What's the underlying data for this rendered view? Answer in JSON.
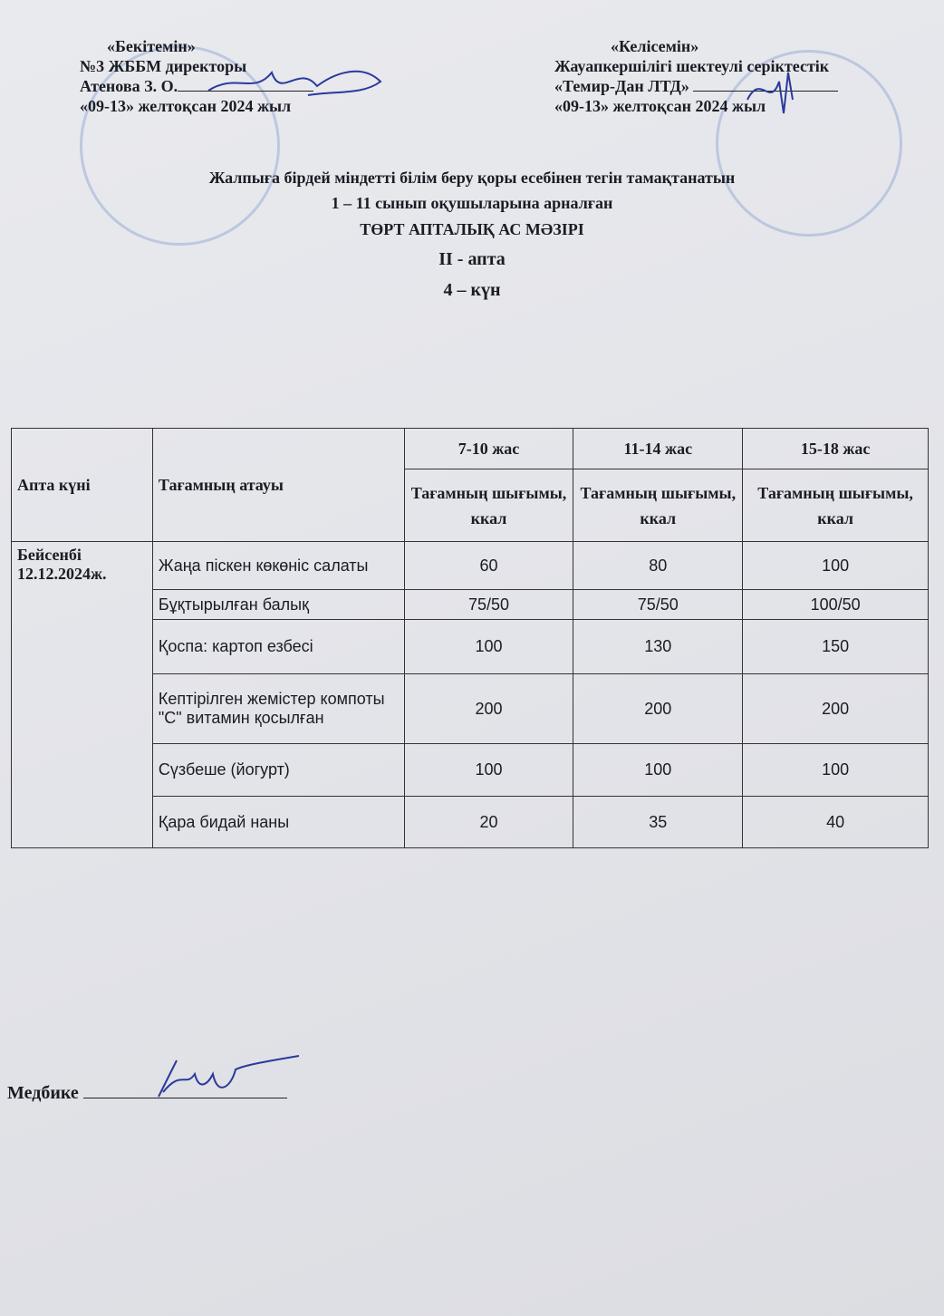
{
  "approve": {
    "title": "«Бекітемін»",
    "line1": "№3 ЖББМ директоры",
    "line2": "Атенова З. О.",
    "date": "«09-13» желтоқсан 2024 жыл"
  },
  "agree": {
    "title": "«Келісемін»",
    "line1": "Жауапкершілігі шектеулі серіктестік",
    "line2": "«Темир-Дан ЛТД»",
    "date": "«09-13» желтоқсан 2024 жыл"
  },
  "heading": {
    "line1": "Жалпыға бірдей міндетті білім беру қоры есебінен тегін тамақтанатын",
    "line2": "1 – 11 сынып оқушыларына арналған",
    "line3": "ТӨРТ АПТАЛЫҚ АС МӘЗІРІ",
    "week": "II - апта",
    "day": "4 – күн"
  },
  "table": {
    "col_day": "Апта күні",
    "col_dish": "Тағамның атауы",
    "ages": [
      "7-10 жас",
      "11-14 жас",
      "15-18 жас"
    ],
    "yield_label": "Тағамның шығымы, ккал",
    "day_name": "Бейсенбі",
    "day_date": "12.12.2024ж.",
    "rows": [
      {
        "dish": "Жаңа піскен көкөніс салаты",
        "v": [
          "60",
          "80",
          "100"
        ]
      },
      {
        "dish": "Бұқтырылған балық",
        "v": [
          "75/50",
          "75/50",
          "100/50"
        ]
      },
      {
        "dish": "Қоспа: картоп езбесі",
        "v": [
          "100",
          "130",
          "150"
        ]
      },
      {
        "dish": "Кептірілген жемістер компоты \"С\" витамин қосылған",
        "v": [
          "200",
          "200",
          "200"
        ]
      },
      {
        "dish": "Сүзбеше (йогурт)",
        "v": [
          "100",
          "100",
          "100"
        ]
      },
      {
        "dish": "Қара бидай наны",
        "v": [
          "20",
          "35",
          "40"
        ]
      }
    ]
  },
  "nurse": {
    "label": "Медбике"
  }
}
